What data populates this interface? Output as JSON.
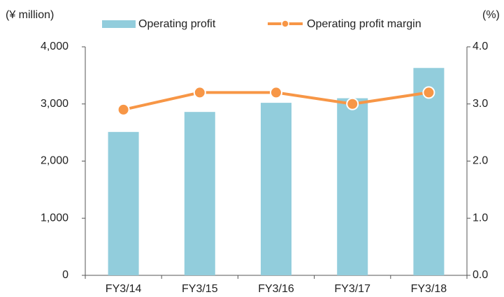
{
  "chart_data": {
    "type": "bar",
    "y_label": "(¥ million)",
    "y2_label": "(%)",
    "categories": [
      "FY3/14",
      "FY3/15",
      "FY3/16",
      "FY3/17",
      "FY3/18"
    ],
    "series": [
      {
        "name": "Operating profit",
        "type": "bar",
        "color": "#92cddc",
        "values": [
          2510,
          2860,
          3020,
          3100,
          3630
        ]
      },
      {
        "name": "Operating profit margin",
        "type": "line",
        "axis": "y2",
        "color": "#f79646",
        "values": [
          2.9,
          3.2,
          3.2,
          3.0,
          3.2
        ]
      }
    ],
    "ylim": [
      0,
      4000
    ],
    "yticks": [
      0,
      {
        "value": 1000,
        "label": "1,000"
      },
      {
        "value": 2000,
        "label": "2,000"
      },
      {
        "value": 3000,
        "label": "3,000"
      },
      {
        "value": 4000,
        "label": "4,000"
      }
    ],
    "y2lim": [
      0,
      4
    ],
    "y2ticks": [
      {
        "value": 0,
        "label": "0.0"
      },
      {
        "value": 1,
        "label": "1.0"
      },
      {
        "value": 2,
        "label": "2.0"
      },
      {
        "value": 3,
        "label": "3.0"
      },
      {
        "value": 4,
        "label": "4.0"
      }
    ]
  }
}
